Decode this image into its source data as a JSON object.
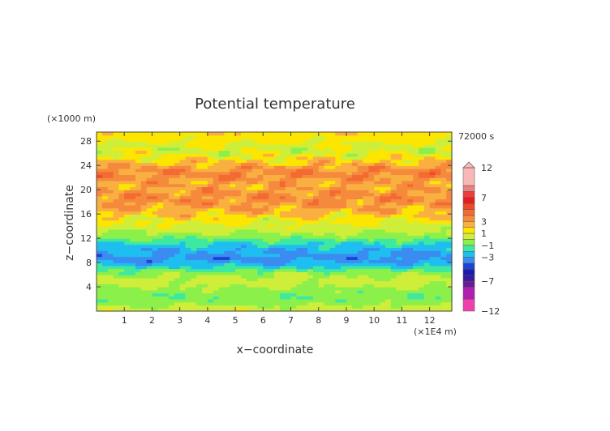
{
  "chart_data": {
    "type": "heatmap",
    "title": "Potential temperature",
    "xlabel": "x−coordinate",
    "ylabel": "z−coordinate",
    "x_unit": "(×1E4 m)",
    "y_unit": "(×1000 m)",
    "time_label": "72000 s",
    "x_range": [
      0,
      12.8
    ],
    "y_range": [
      0,
      29.5
    ],
    "x_ticks": [
      1,
      2,
      3,
      4,
      5,
      6,
      7,
      8,
      9,
      10,
      11,
      12
    ],
    "y_ticks": [
      4,
      8,
      12,
      16,
      20,
      24,
      28
    ],
    "colorbar": {
      "tick_labels": [
        "12",
        "7",
        "3",
        "1",
        "−1",
        "−3",
        "−7",
        "−12"
      ],
      "tick_values": [
        12,
        7,
        3,
        1,
        -1,
        -3,
        -7,
        -12
      ],
      "levels": [
        {
          "from": 9,
          "to": 12,
          "color": "#f8b8b8"
        },
        {
          "from": 8,
          "to": 9,
          "color": "#f07f7f"
        },
        {
          "from": 7,
          "to": 8,
          "color": "#f03c3c"
        },
        {
          "from": 6,
          "to": 7,
          "color": "#e81e1e"
        },
        {
          "from": 5,
          "to": 6,
          "color": "#ee4a2a"
        },
        {
          "from": 4,
          "to": 5,
          "color": "#f36a32"
        },
        {
          "from": 3,
          "to": 4,
          "color": "#f58a3c"
        },
        {
          "from": 2,
          "to": 3,
          "color": "#f9b040"
        },
        {
          "from": 1,
          "to": 2,
          "color": "#fce600"
        },
        {
          "from": 0,
          "to": 1,
          "color": "#cfee3a"
        },
        {
          "from": -1,
          "to": 0,
          "color": "#8cf04a"
        },
        {
          "from": -2,
          "to": -1,
          "color": "#3ee8a0"
        },
        {
          "from": -3,
          "to": -2,
          "color": "#1fbef0"
        },
        {
          "from": -4,
          "to": -3,
          "color": "#3a8cf0"
        },
        {
          "from": -5,
          "to": -4,
          "color": "#1a44d6"
        },
        {
          "from": -6,
          "to": -5,
          "color": "#1a1ab0"
        },
        {
          "from": -7,
          "to": -6,
          "color": "#3a1a9a"
        },
        {
          "from": -8,
          "to": -7,
          "color": "#6a1a9a"
        },
        {
          "from": -10,
          "to": -8,
          "color": "#b020b0"
        },
        {
          "from": -12,
          "to": -10,
          "color": "#f040b0"
        }
      ]
    },
    "z_layers": [
      {
        "z": 0.5,
        "value": 0.5
      },
      {
        "z": 1.5,
        "value": -0.5
      },
      {
        "z": 2.5,
        "value": -0.8
      },
      {
        "z": 3.5,
        "value": -0.4
      },
      {
        "z": 4.5,
        "value": 0.4
      },
      {
        "z": 5.5,
        "value": 0.2
      },
      {
        "z": 6.5,
        "value": -0.6
      },
      {
        "z": 7.5,
        "value": -2.3
      },
      {
        "z": 8.5,
        "value": -3.4
      },
      {
        "z": 9.5,
        "value": -3.2
      },
      {
        "z": 10.5,
        "value": -2.5
      },
      {
        "z": 11.5,
        "value": -1.6
      },
      {
        "z": 12.5,
        "value": -0.3
      },
      {
        "z": 13.5,
        "value": 0.4
      },
      {
        "z": 14.5,
        "value": 1.0
      },
      {
        "z": 15.5,
        "value": 1.6
      },
      {
        "z": 16.5,
        "value": 2.4
      },
      {
        "z": 17.5,
        "value": 3.0
      },
      {
        "z": 18.5,
        "value": 3.4
      },
      {
        "z": 19.5,
        "value": 3.3
      },
      {
        "z": 20.5,
        "value": 2.6
      },
      {
        "z": 21.5,
        "value": 3.0
      },
      {
        "z": 22.5,
        "value": 3.7
      },
      {
        "z": 23.5,
        "value": 3.2
      },
      {
        "z": 24.5,
        "value": 2.2
      },
      {
        "z": 25.5,
        "value": 1.2
      },
      {
        "z": 26.5,
        "value": 0.6
      },
      {
        "z": 27.5,
        "value": 0.9
      },
      {
        "z": 28.5,
        "value": 1.4
      },
      {
        "z": 29.5,
        "value": 1.8
      }
    ]
  }
}
